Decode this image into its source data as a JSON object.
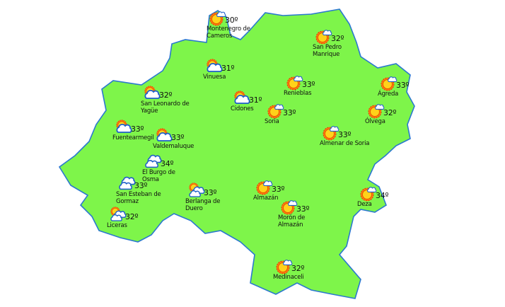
{
  "map": {
    "region_fill": "#7ef54a",
    "border_color": "#2a78cf",
    "background": "#ffffff"
  },
  "locations": [
    {
      "name": "Montenegro de\nCameros",
      "temp": "30º",
      "icon": "sun-small-cloud-icon"
    },
    {
      "name": "San Pedro\nManrique",
      "temp": "32º",
      "icon": "sun-small-cloud-icon"
    },
    {
      "name": "Vinuesa",
      "temp": "31º",
      "icon": "cloud-sun-icon"
    },
    {
      "name": "San Leonardo de\nYagüe",
      "temp": "32º",
      "icon": "cloud-sun-icon"
    },
    {
      "name": "Renieblas",
      "temp": "33º",
      "icon": "sun-small-cloud-icon"
    },
    {
      "name": "Cidones",
      "temp": "31º",
      "icon": "cloud-sun-icon"
    },
    {
      "name": "Ágreda",
      "temp": "33º",
      "icon": "sun-small-cloud-icon"
    },
    {
      "name": "Soria",
      "temp": "33º",
      "icon": "sun-small-cloud-icon"
    },
    {
      "name": "Ólvega",
      "temp": "32º",
      "icon": "sun-small-cloud-icon"
    },
    {
      "name": "Fuentearmegil",
      "temp": "33º",
      "icon": "cloud-sun-icon"
    },
    {
      "name": "Valdemaluque",
      "temp": "33º",
      "icon": "cloud-sun-icon"
    },
    {
      "name": "Almenar de Soria",
      "temp": "33º",
      "icon": "sun-small-cloud-icon"
    },
    {
      "name": "El Burgo de\nOsma",
      "temp": "34º",
      "icon": "clouds-icon"
    },
    {
      "name": "San Esteban de\nGormaz",
      "temp": "33º",
      "icon": "clouds-icon"
    },
    {
      "name": "Berlanga de\nDuero",
      "temp": "33º",
      "icon": "sun-clouds-icon"
    },
    {
      "name": "Almazán",
      "temp": "33º",
      "icon": "sun-small-cloud-icon"
    },
    {
      "name": "Deza",
      "temp": "34º",
      "icon": "sun-small-cloud-icon"
    },
    {
      "name": "Morón de\nAlmazán",
      "temp": "33º",
      "icon": "sun-small-cloud-icon"
    },
    {
      "name": "Liceras",
      "temp": "32º",
      "icon": "sun-clouds-icon"
    },
    {
      "name": "Medinaceli",
      "temp": "32º",
      "icon": "sun-small-cloud-icon"
    }
  ]
}
